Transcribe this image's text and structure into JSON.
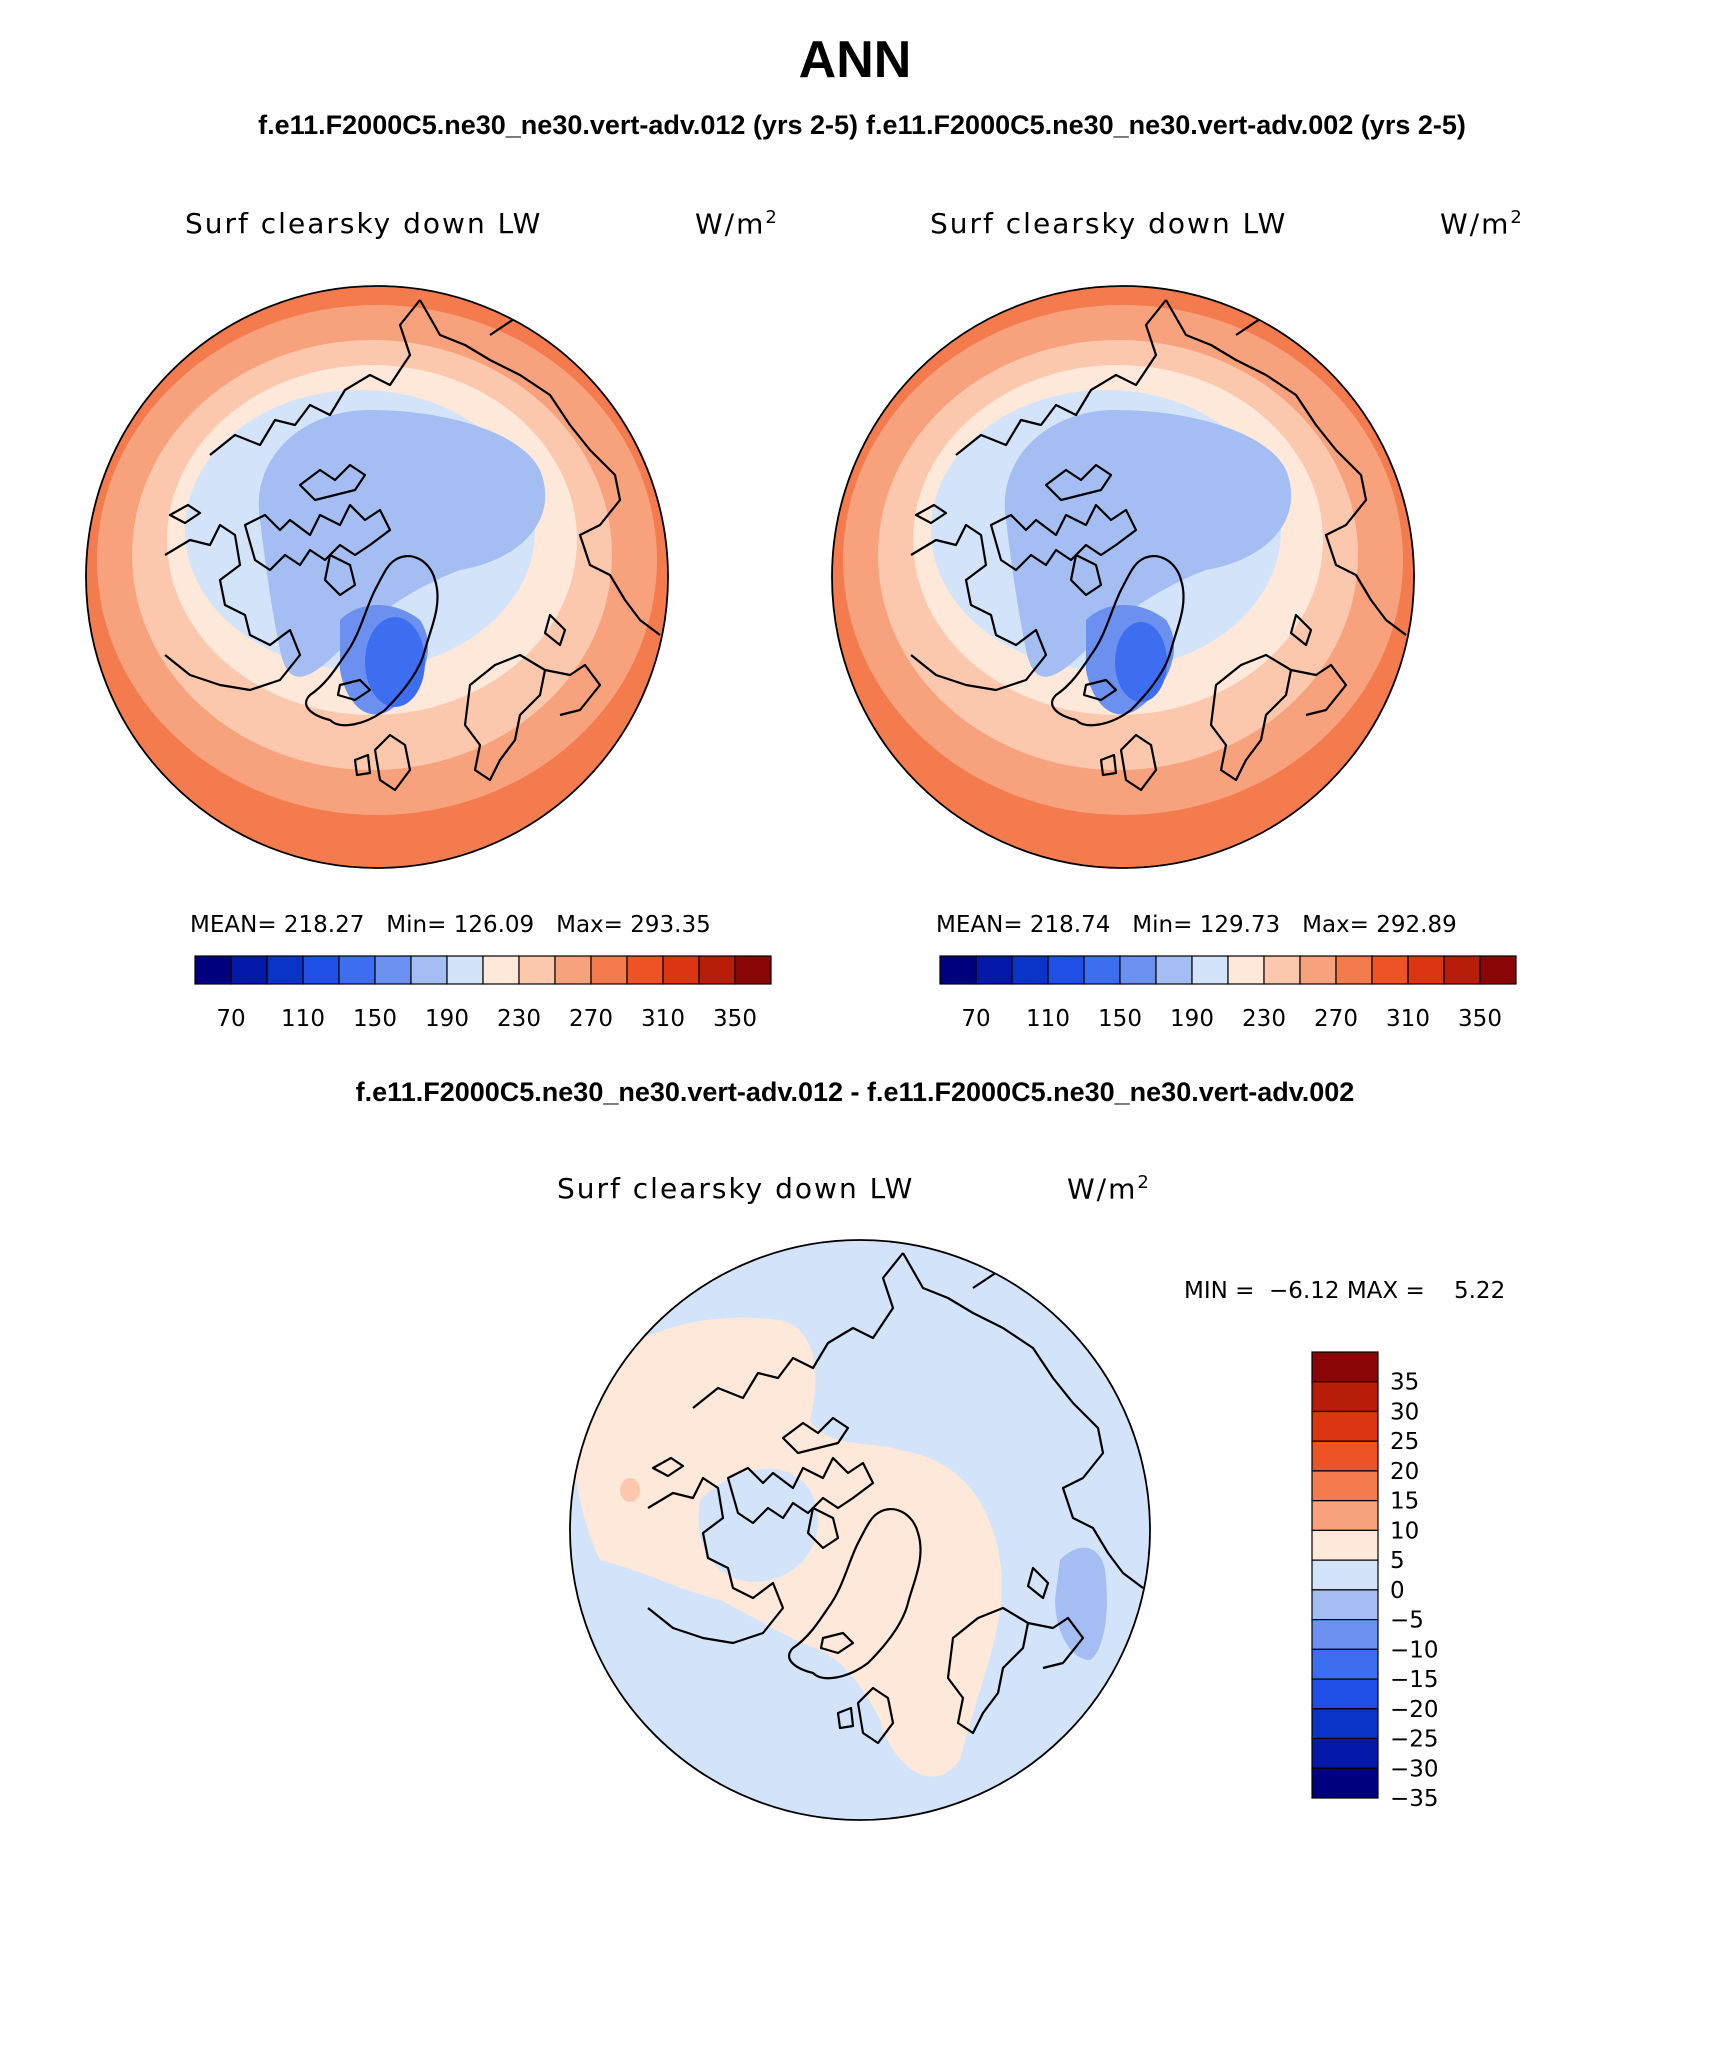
{
  "page": {
    "title": "ANN",
    "top_left_case": "f.e11.F2000C5.ne30_ne30.vert-adv.012 (yrs 2-5)",
    "top_right_case": "f.e11.F2000C5.ne30_ne30.vert-adv.002 (yrs 2-5)",
    "diff_title": "f.e11.F2000C5.ne30_ne30.vert-adv.012 - f.e11.F2000C5.ne30_ne30.vert-adv.002"
  },
  "panels": [
    {
      "variable": "Surf clearsky down LW",
      "units_base": "W/m",
      "units_sup": "2",
      "stats": "MEAN= 218.27   Min= 126.09   Max= 293.35"
    },
    {
      "variable": "Surf clearsky down LW",
      "units_base": "W/m",
      "units_sup": "2",
      "stats": "MEAN= 218.74   Min= 129.73   Max= 292.89"
    },
    {
      "variable": "Surf clearsky down LW",
      "units_base": "W/m",
      "units_sup": "2",
      "stats": "MIN =  −6.12 MAX =    5.22"
    }
  ],
  "colorbar_main": {
    "colors": [
      "#00007f",
      "#0419a8",
      "#0a33c8",
      "#1f4fe6",
      "#3d6ef0",
      "#6b90ef",
      "#a4bdf2",
      "#d2e3fa",
      "#fde8da",
      "#fbc8ad",
      "#f7a27d",
      "#f47b4d",
      "#ee5326",
      "#dc3512",
      "#b81d09",
      "#8a0606"
    ],
    "tick_labels": [
      "70",
      "110",
      "150",
      "190",
      "230",
      "270",
      "310",
      "350"
    ]
  },
  "colorbar_diff": {
    "colors": [
      "#8a0606",
      "#b81d09",
      "#dc3512",
      "#ee5326",
      "#f47b4d",
      "#f7a27d",
      "#fde8da",
      "#d2e3fa",
      "#a4bdf2",
      "#6b90ef",
      "#3d6ef0",
      "#1f4fe6",
      "#0a33c8",
      "#0419a8",
      "#00007f"
    ],
    "tick_labels": [
      "35",
      "30",
      "25",
      "20",
      "15",
      "10",
      "5",
      "0",
      "−5",
      "−10",
      "−15",
      "−20",
      "−25",
      "−30",
      "−35"
    ]
  },
  "map_colors": {
    "c130": "#3d6ef0",
    "c150": "#6b90ef",
    "c170": "#a4bdf2",
    "c190": "#d2e3fa",
    "c210": "#fde8da",
    "c230": "#fbc8ad",
    "c250": "#f7a27d",
    "c270": "#f47b4d",
    "diff_pos": "#fde8da",
    "diff_neg": "#d2e3fa",
    "diff_neg2": "#a4bdf2",
    "diff_pos2": "#fbc8ad"
  }
}
